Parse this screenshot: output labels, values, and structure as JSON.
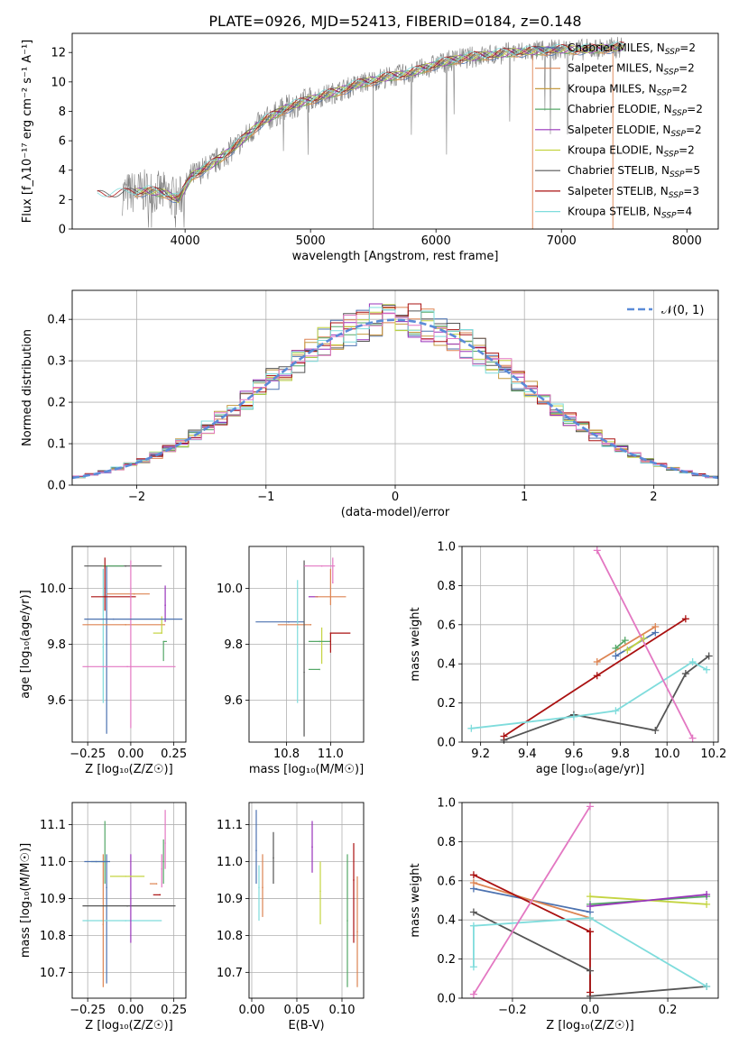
{
  "title": "PLATE=0926, MJD=52413, FIBERID=0184, z=0.148",
  "colors": {
    "series": [
      "#4c72b0",
      "#dd8452",
      "#c49a40",
      "#55a868",
      "#9933bb",
      "#c4d441",
      "#555555",
      "#aa1111",
      "#7fdcdc",
      "#e377c2"
    ],
    "spectrum": "#808080",
    "normal_curve": "#5b8bd8"
  },
  "chart_data": [
    {
      "type": "line",
      "panel": "spectrum",
      "xlabel": "wavelength [Angstrom, rest frame]",
      "ylabel": "Flux [f_λ10⁻¹⁷ erg cm⁻² s⁻¹ A⁻¹]",
      "xlim": [
        3100,
        8250
      ],
      "ylim": [
        0,
        13.3
      ],
      "xticks": [
        4000,
        5000,
        6000,
        7000,
        8000
      ],
      "yticks": [
        0,
        2,
        4,
        6,
        8,
        10,
        12
      ],
      "grid": false,
      "legend_position": "top-right",
      "legend": [
        {
          "name": "Chabrier MILES, N",
          "sub": "SSP",
          "tail": "=2"
        },
        {
          "name": "Salpeter MILES, N",
          "sub": "SSP",
          "tail": "=2"
        },
        {
          "name": "Kroupa MILES, N",
          "sub": "SSP",
          "tail": "=2"
        },
        {
          "name": "Chabrier ELODIE, N",
          "sub": "SSP",
          "tail": "=2"
        },
        {
          "name": "Salpeter ELODIE, N",
          "sub": "SSP",
          "tail": "=2"
        },
        {
          "name": "Kroupa ELODIE, N",
          "sub": "SSP",
          "tail": "=2"
        },
        {
          "name": "Chabrier STELIB, N",
          "sub": "SSP",
          "tail": "=5"
        },
        {
          "name": "Salpeter STELIB, N",
          "sub": "SSP",
          "tail": "=3"
        },
        {
          "name": "Kroupa STELIB, N",
          "sub": "SSP",
          "tail": "=4"
        }
      ],
      "continuum": [
        [
          3300,
          2.3
        ],
        [
          3500,
          2.4
        ],
        [
          3700,
          2.6
        ],
        [
          3850,
          2.4
        ],
        [
          3950,
          2.0
        ],
        [
          4050,
          3.6
        ],
        [
          4200,
          4.3
        ],
        [
          4400,
          5.6
        ],
        [
          4600,
          7.2
        ],
        [
          4800,
          8.2
        ],
        [
          5000,
          8.8
        ],
        [
          5200,
          9.3
        ],
        [
          5400,
          9.9
        ],
        [
          5600,
          10.3
        ],
        [
          5800,
          10.6
        ],
        [
          6000,
          11.2
        ],
        [
          6200,
          11.6
        ],
        [
          6400,
          11.8
        ],
        [
          6600,
          12.0
        ],
        [
          6800,
          12.1
        ],
        [
          7000,
          12.2
        ],
        [
          7200,
          12.2
        ],
        [
          7400,
          12.3
        ],
        [
          7500,
          12.4
        ]
      ]
    },
    {
      "type": "line",
      "panel": "residuals",
      "xlabel": "(data-model)/error",
      "ylabel": "Normed distribution",
      "xlim": [
        -2.5,
        2.5
      ],
      "ylim": [
        0,
        0.47
      ],
      "xticks": [
        -2,
        -1,
        0,
        1,
        2
      ],
      "yticks": [
        0.0,
        0.1,
        0.2,
        0.3,
        0.4
      ],
      "grid": true,
      "legend_position": "top-right",
      "legend": [
        {
          "name": "𝒩(0, 1)"
        }
      ],
      "bin_width": 0.1
    },
    {
      "type": "scatter",
      "panel": "age-Z",
      "xlabel": "Z [log₁₀(Z/Z☉)]",
      "ylabel": "age  [log₁₀(age/yr)]",
      "xlim": [
        -0.34,
        0.32
      ],
      "ylim": [
        9.45,
        10.15
      ],
      "xticks": [
        -0.25,
        0.0,
        0.25
      ],
      "yticks": [
        9.6,
        9.8,
        10.0
      ],
      "grid": true,
      "points": [
        {
          "x": -0.14,
          "xerr": [
            0.0,
            0.0
          ],
          "y": 9.8,
          "yerr": [
            0.32,
            0.28
          ]
        },
        {
          "x": -0.16,
          "xerr": [
            0.0,
            0.0
          ],
          "y": 9.79,
          "yerr": [
            0.2,
            0.28
          ]
        },
        {
          "x": -0.03,
          "xerr": [
            0.25,
            0.23
          ],
          "y": 9.87,
          "yerr": [
            0.0,
            0.0
          ]
        },
        {
          "x": -0.03,
          "xerr": [
            0.24,
            0.21
          ],
          "y": 10.08,
          "yerr": [
            0.0,
            0.0
          ]
        },
        {
          "x": 0.2,
          "xerr": [
            0.0,
            0.0
          ],
          "y": 9.94,
          "yerr": [
            0.06,
            0.07
          ]
        },
        {
          "x": 0.18,
          "xerr": [
            0.05,
            0.0
          ],
          "y": 9.84,
          "yerr": [
            0.0,
            0.06
          ]
        },
        {
          "x": -0.16,
          "xerr": [
            0.0,
            0.12
          ],
          "y": 10.08,
          "yerr": [
            0.0,
            0.0
          ]
        },
        {
          "x": -0.15,
          "xerr": [
            0.08,
            0.18
          ],
          "y": 9.97,
          "yerr": [
            0.05,
            0.14
          ]
        },
        {
          "x": 0.02,
          "xerr": [
            0.16,
            0.09
          ],
          "y": 9.98,
          "yerr": [
            0.0,
            0.0
          ]
        },
        {
          "x": 0.0,
          "xerr": [
            0.0,
            0.0
          ],
          "y": 9.72,
          "yerr": [
            0.22,
            0.38
          ]
        },
        {
          "x": -0.02,
          "xerr": [
            0.26,
            0.28
          ],
          "y": 9.72,
          "yerr": [
            0.0,
            0.0
          ]
        },
        {
          "x": 0.19,
          "xerr": [
            0.0,
            0.02
          ],
          "y": 9.81,
          "yerr": [
            0.07,
            0.0
          ]
        },
        {
          "x": -0.1,
          "xerr": [
            0.17,
            0.4
          ],
          "y": 9.89,
          "yerr": [
            0.0,
            0.0
          ]
        }
      ]
    },
    {
      "type": "scatter",
      "panel": "age-mass",
      "xlabel": "mass [log₁₀(M/M☉)]",
      "ylabel": "",
      "xlim": [
        10.63,
        11.15
      ],
      "ylim": [
        9.45,
        10.15
      ],
      "xticks": [
        10.8,
        11.0
      ],
      "yticks": [
        9.6,
        9.8,
        10.0
      ],
      "grid": true,
      "points": [
        {
          "x": 10.81,
          "xerr": [
            0.15,
            0.07
          ],
          "y": 9.88,
          "yerr": [
            0.0,
            0.0
          ]
        },
        {
          "x": 10.85,
          "xerr": [
            0.0,
            0.0
          ],
          "y": 9.86,
          "yerr": [
            0.27,
            0.17
          ]
        },
        {
          "x": 10.91,
          "xerr": [
            0.15,
            0.0
          ],
          "y": 9.87,
          "yerr": [
            0.0,
            0.0
          ]
        },
        {
          "x": 10.88,
          "xerr": [
            0.0,
            0.0
          ],
          "y": 9.7,
          "yerr": [
            0.23,
            0.4
          ]
        },
        {
          "x": 10.94,
          "xerr": [
            0.04,
            0.0
          ],
          "y": 9.97,
          "yerr": [
            0.0,
            0.0
          ]
        },
        {
          "x": 10.96,
          "xerr": [
            0.0,
            0.0
          ],
          "y": 9.81,
          "yerr": [
            0.08,
            0.05
          ]
        },
        {
          "x": 10.95,
          "xerr": [
            0.05,
            0.05
          ],
          "y": 9.81,
          "yerr": [
            0.0,
            0.0
          ]
        },
        {
          "x": 11.0,
          "xerr": [
            0.0,
            0.09
          ],
          "y": 9.84,
          "yerr": [
            0.07,
            0.0
          ]
        },
        {
          "x": 11.0,
          "xerr": [
            0.07,
            0.07
          ],
          "y": 9.97,
          "yerr": [
            0.03,
            0.1
          ]
        },
        {
          "x": 11.01,
          "xerr": [
            0.0,
            0.0
          ],
          "y": 10.02,
          "yerr": [
            0.0,
            0.09
          ]
        },
        {
          "x": 10.96,
          "xerr": [
            0.08,
            0.06
          ],
          "y": 10.08,
          "yerr": [
            0.0,
            0.0
          ]
        },
        {
          "x": 10.95,
          "xerr": [
            0.05,
            0.0
          ],
          "y": 9.71,
          "yerr": [
            0.0,
            0.0
          ]
        }
      ]
    },
    {
      "type": "line",
      "panel": "weight-age",
      "xlabel": "age  [log₁₀(age/yr)]",
      "ylabel": "mass weight",
      "xlim": [
        9.12,
        10.22
      ],
      "ylim": [
        0.0,
        1.0
      ],
      "xticks": [
        9.2,
        9.4,
        9.6,
        9.8,
        10.0,
        10.2
      ],
      "yticks": [
        0.0,
        0.2,
        0.4,
        0.6,
        0.8,
        1.0
      ],
      "grid": true,
      "series": [
        {
          "x": [
            9.78,
            9.95
          ],
          "y": [
            0.44,
            0.56
          ]
        },
        {
          "x": [
            9.7,
            9.95
          ],
          "y": [
            0.41,
            0.59
          ]
        },
        {
          "x": [
            9.78,
            9.82
          ],
          "y": [
            0.48,
            0.52
          ]
        },
        {
          "x": [
            9.83,
            9.9
          ],
          "y": [
            0.47,
            0.53
          ]
        },
        {
          "x": [
            9.3,
            9.6,
            9.95,
            10.08,
            10.18
          ],
          "y": [
            0.01,
            0.14,
            0.06,
            0.35,
            0.44
          ]
        },
        {
          "x": [
            9.3,
            9.7,
            10.08
          ],
          "y": [
            0.03,
            0.34,
            0.63
          ]
        },
        {
          "x": [
            9.16,
            9.6,
            9.78,
            10.11,
            10.17
          ],
          "y": [
            0.07,
            0.13,
            0.16,
            0.41,
            0.37
          ]
        },
        {
          "x": [
            9.7,
            10.11
          ],
          "y": [
            0.98,
            0.02
          ]
        }
      ]
    },
    {
      "type": "line",
      "panel": "mass-Z",
      "xlabel": "Z [log₁₀(Z/Z☉)]",
      "ylabel": "mass [log₁₀(M/M☉)]",
      "xlim": [
        -0.34,
        0.32
      ],
      "ylim": [
        10.63,
        11.16
      ],
      "xticks": [
        -0.25,
        0.0,
        0.25
      ],
      "yticks": [
        10.7,
        10.8,
        10.9,
        11.0,
        11.1
      ],
      "grid": true,
      "points": [
        {
          "x": -0.14,
          "xerr": [
            0.0,
            0.0
          ],
          "y": 10.93,
          "yerr": [
            0.26,
            0.09
          ]
        },
        {
          "x": -0.03,
          "xerr": [
            0.25,
            0.21
          ],
          "y": 10.84,
          "yerr": [
            0.0,
            0.0
          ]
        },
        {
          "x": -0.16,
          "xerr": [
            0.0,
            0.0
          ],
          "y": 10.83,
          "yerr": [
            0.17,
            0.19
          ]
        },
        {
          "x": -0.02,
          "xerr": [
            0.26,
            0.28
          ],
          "y": 10.88,
          "yerr": [
            0.0,
            0.0
          ]
        },
        {
          "x": 0.0,
          "xerr": [
            0.0,
            0.0
          ],
          "y": 10.96,
          "yerr": [
            0.18,
            0.06
          ]
        },
        {
          "x": -0.03,
          "xerr": [
            0.09,
            0.11
          ],
          "y": 10.96,
          "yerr": [
            0.0,
            0.0
          ]
        },
        {
          "x": 0.19,
          "xerr": [
            0.0,
            0.0
          ],
          "y": 11.0,
          "yerr": [
            0.06,
            0.06
          ]
        },
        {
          "x": 0.17,
          "xerr": [
            0.04,
            0.0
          ],
          "y": 10.91,
          "yerr": [
            0.0,
            0.0
          ]
        },
        {
          "x": 0.15,
          "xerr": [
            0.04,
            0.0
          ],
          "y": 10.94,
          "yerr": [
            0.0,
            0.0
          ]
        },
        {
          "x": 0.2,
          "xerr": [
            0.0,
            0.0
          ],
          "y": 11.05,
          "yerr": [
            0.07,
            0.09
          ]
        },
        {
          "x": 0.18,
          "xerr": [
            0.0,
            0.0
          ],
          "y": 10.98,
          "yerr": [
            0.05,
            0.04
          ]
        },
        {
          "x": -0.15,
          "xerr": [
            0.08,
            0.0
          ],
          "y": 11.0,
          "yerr": [
            0.06,
            0.11
          ]
        },
        {
          "x": -0.2,
          "xerr": [
            0.07,
            0.08
          ],
          "y": 11.0,
          "yerr": [
            0.0,
            0.0
          ]
        }
      ]
    },
    {
      "type": "line",
      "panel": "mass-ebv",
      "xlabel": "E(B-V)",
      "ylabel": "",
      "xlim": [
        -0.003,
        0.124
      ],
      "ylim": [
        10.63,
        11.16
      ],
      "xticks": [
        0.0,
        0.05,
        0.1
      ],
      "yticks": [
        10.7,
        10.8,
        10.9,
        11.0,
        11.1
      ],
      "grid": true,
      "points": [
        {
          "x": 0.005,
          "xerr": [
            0.0,
            0.0
          ],
          "y": 11.03,
          "yerr": [
            0.09,
            0.11
          ]
        },
        {
          "x": 0.008,
          "xerr": [
            0.0,
            0.0
          ],
          "y": 10.93,
          "yerr": [
            0.09,
            0.06
          ]
        },
        {
          "x": 0.012,
          "xerr": [
            0.0,
            0.0
          ],
          "y": 10.93,
          "yerr": [
            0.08,
            0.09
          ]
        },
        {
          "x": 0.024,
          "xerr": [
            0.0,
            0.0
          ],
          "y": 11.01,
          "yerr": [
            0.07,
            0.07
          ]
        },
        {
          "x": 0.067,
          "xerr": [
            0.0,
            0.0
          ],
          "y": 11.04,
          "yerr": [
            0.07,
            0.07
          ]
        },
        {
          "x": 0.076,
          "xerr": [
            0.0,
            0.0
          ],
          "y": 10.92,
          "yerr": [
            0.09,
            0.08
          ]
        },
        {
          "x": 0.106,
          "xerr": [
            0.0,
            0.0
          ],
          "y": 10.84,
          "yerr": [
            0.18,
            0.18
          ]
        },
        {
          "x": 0.113,
          "xerr": [
            0.0,
            0.0
          ],
          "y": 10.95,
          "yerr": [
            0.17,
            0.1
          ]
        },
        {
          "x": 0.117,
          "xerr": [
            0.0,
            0.0
          ],
          "y": 10.81,
          "yerr": [
            0.15,
            0.15
          ]
        }
      ]
    },
    {
      "type": "line",
      "panel": "weight-Z",
      "xlabel": "Z [log₁₀(Z/Z☉)]",
      "ylabel": "mass weight",
      "xlim": [
        -0.33,
        0.33
      ],
      "ylim": [
        0.0,
        1.0
      ],
      "xticks": [
        -0.2,
        0.0,
        0.2
      ],
      "yticks": [
        0.0,
        0.2,
        0.4,
        0.6,
        0.8,
        1.0
      ],
      "grid": true,
      "series": [
        {
          "x": [
            -0.3,
            0.0
          ],
          "y": [
            0.56,
            0.44
          ]
        },
        {
          "x": [
            -0.3,
            0.0
          ],
          "y": [
            0.59,
            0.41
          ]
        },
        {
          "x": [
            0.0,
            0.3
          ],
          "y": [
            0.48,
            0.52
          ]
        },
        {
          "x": [
            0.0,
            0.3
          ],
          "y": [
            0.52,
            0.48
          ]
        },
        {
          "x": [
            0.0,
            0.3
          ],
          "y": [
            0.47,
            0.53
          ]
        },
        {
          "x": [
            -0.3,
            0.0,
            0.0,
            0.3
          ],
          "y": [
            0.44,
            0.14,
            0.01,
            0.06
          ]
        },
        {
          "x": [
            -0.3,
            0.0,
            0.0,
            0.0
          ],
          "y": [
            0.63,
            0.34,
            0.03,
            0.34
          ]
        },
        {
          "x": [
            -0.3,
            -0.3,
            0.0,
            0.3
          ],
          "y": [
            0.16,
            0.37,
            0.41,
            0.06
          ]
        },
        {
          "x": [
            -0.3,
            0.0
          ],
          "y": [
            0.02,
            0.98
          ]
        }
      ]
    }
  ]
}
